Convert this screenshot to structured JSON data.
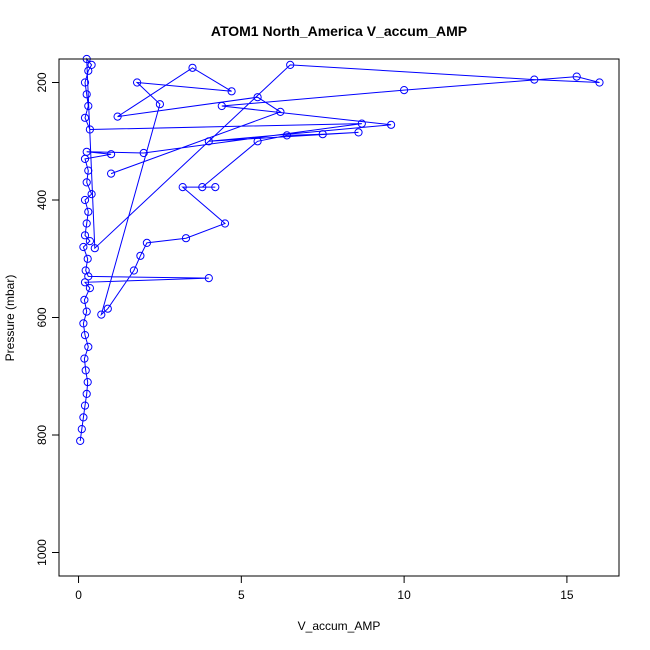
{
  "chart_data": {
    "type": "scatter",
    "title": "ATOM1 North_America V_accum_AMP",
    "xlabel": "V_accum_AMP",
    "ylabel": "Pressure (mbar)",
    "xlim": [
      -0.6,
      16.6
    ],
    "ylim": [
      1040,
      160
    ],
    "y_reversed": true,
    "x_ticks": [
      "0",
      "5",
      "10",
      "15"
    ],
    "y_ticks": [
      "200",
      "400",
      "600",
      "800",
      "1000"
    ],
    "grid": false,
    "marker": "open-circle",
    "color": "#0000ff",
    "series": [
      {
        "connected": true,
        "points": [
          [
            0.05,
            810
          ],
          [
            0.1,
            790
          ],
          [
            0.15,
            770
          ],
          [
            0.2,
            750
          ],
          [
            0.25,
            730
          ],
          [
            0.28,
            710
          ],
          [
            0.22,
            690
          ],
          [
            0.18,
            670
          ],
          [
            0.3,
            650
          ],
          [
            0.2,
            630
          ],
          [
            0.15,
            610
          ],
          [
            0.25,
            590
          ],
          [
            0.18,
            570
          ],
          [
            0.35,
            550
          ],
          [
            0.2,
            540
          ],
          [
            4.0,
            533
          ],
          [
            0.3,
            530
          ],
          [
            0.22,
            520
          ],
          [
            0.28,
            500
          ],
          [
            0.15,
            480
          ],
          [
            0.35,
            470
          ],
          [
            0.2,
            460
          ],
          [
            0.25,
            440
          ],
          [
            0.3,
            420
          ],
          [
            0.2,
            400
          ],
          [
            0.4,
            390
          ],
          [
            0.25,
            370
          ],
          [
            0.3,
            350
          ],
          [
            0.2,
            330
          ],
          [
            1.0,
            322
          ],
          [
            0.25,
            318
          ],
          [
            2.0,
            320
          ],
          [
            8.7,
            270
          ],
          [
            0.35,
            280
          ],
          [
            0.2,
            260
          ],
          [
            0.3,
            240
          ],
          [
            0.25,
            220
          ],
          [
            0.2,
            200
          ],
          [
            0.3,
            180
          ],
          [
            0.4,
            170
          ],
          [
            0.25,
            160
          ],
          [
            0.5,
            482
          ],
          [
            6.5,
            170
          ],
          [
            14.0,
            195
          ],
          [
            16.0,
            200
          ],
          [
            15.3,
            190
          ],
          [
            10.0,
            213
          ],
          [
            4.4,
            240
          ],
          [
            9.6,
            272
          ],
          [
            4.0,
            300
          ],
          [
            8.6,
            285
          ],
          [
            7.5,
            288
          ],
          [
            6.4,
            290
          ],
          [
            5.5,
            300
          ],
          [
            3.8,
            378
          ],
          [
            4.2,
            378
          ],
          [
            3.2,
            378
          ],
          [
            4.5,
            440
          ],
          [
            3.3,
            465
          ],
          [
            2.1,
            473
          ],
          [
            1.9,
            495
          ],
          [
            1.7,
            520
          ],
          [
            0.9,
            585
          ],
          [
            0.7,
            595
          ],
          [
            2.5,
            237
          ],
          [
            1.8,
            200
          ],
          [
            4.7,
            215
          ],
          [
            3.5,
            175
          ],
          [
            1.2,
            258
          ],
          [
            5.5,
            225
          ],
          [
            6.2,
            250
          ],
          [
            1.0,
            355
          ]
        ]
      }
    ]
  }
}
